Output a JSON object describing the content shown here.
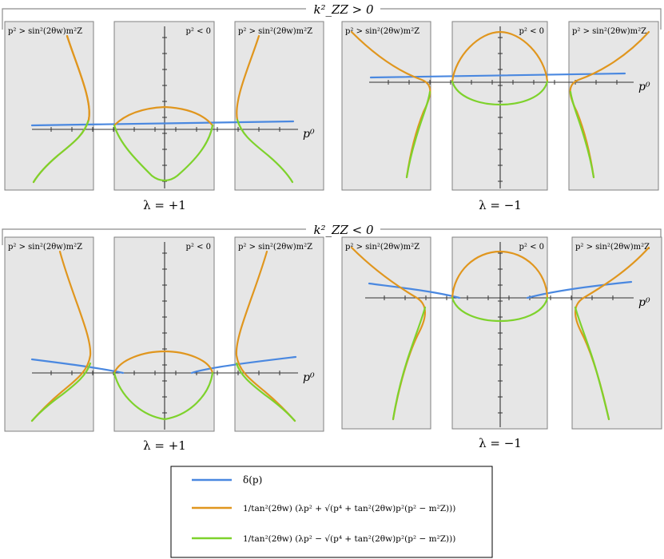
{
  "top_section": {
    "header": "k²_ZZ > 0",
    "panels": [
      {
        "caption": "λ = +1"
      },
      {
        "caption": "λ = −1"
      }
    ]
  },
  "bottom_section": {
    "header": "k²_ZZ < 0",
    "panels": [
      {
        "caption": "λ = +1"
      },
      {
        "caption": "λ = −1"
      }
    ]
  },
  "region_labels": {
    "outer": "p² > sin²(2θw)m²Z",
    "middle": "p² < 0"
  },
  "axis_label": "p⁰",
  "legend": [
    {
      "label": "δ(p)",
      "color": "#4a88e0"
    },
    {
      "label": "1/tan²(2θw) (λp² + √(p⁴ + tan²(2θw)p²(p² − m²Z)))",
      "color": "#e0961e"
    },
    {
      "label": "1/tan²(2θw) (λp² − √(p⁴ + tan²(2θw)p²(p² − m²Z)))",
      "color": "#7ed22c"
    }
  ],
  "colors": {
    "region_fill": "#e6e6e6",
    "region_border": "#808080",
    "bracket": "#8c8c8c"
  }
}
